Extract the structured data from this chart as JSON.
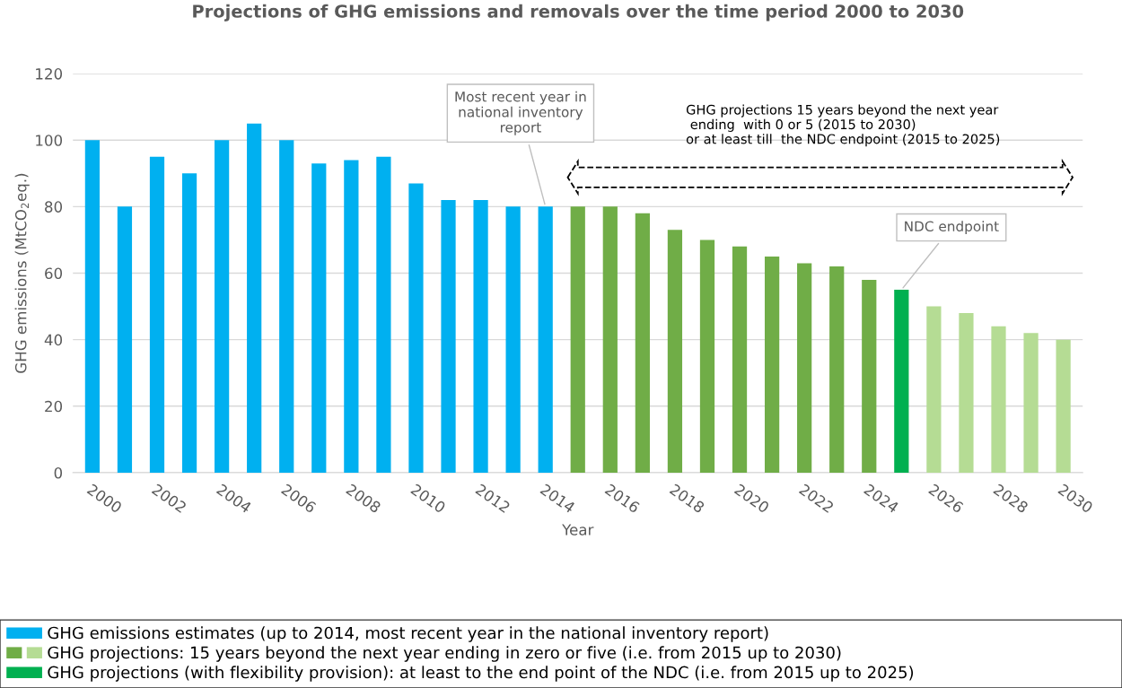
{
  "chart_data": {
    "type": "bar",
    "title": "Projections of GHG emissions and removals over the time period 2000 to 2030",
    "xlabel": "Year",
    "ylabel": "GHG emissions (MtCO$_{2}$eq.)",
    "x": [
      2000,
      2001,
      2002,
      2003,
      2004,
      2005,
      2006,
      2007,
      2008,
      2009,
      2010,
      2011,
      2012,
      2013,
      2014,
      2015,
      2016,
      2017,
      2018,
      2019,
      2020,
      2021,
      2022,
      2023,
      2024,
      2025,
      2026,
      2027,
      2028,
      2029,
      2030
    ],
    "series": [
      {
        "name": "GHG emissions estimates (up to 2014, most recent year in the national inventory report)",
        "color": "#00b0f0",
        "values": [
          100,
          80,
          95,
          90,
          100,
          105,
          100,
          93,
          94,
          95,
          87,
          82,
          82,
          80,
          80,
          null,
          null,
          null,
          null,
          null,
          null,
          null,
          null,
          null,
          null,
          null,
          null,
          null,
          null,
          null,
          null
        ]
      },
      {
        "name": "GHG projections: 15 years beyond the next year ending in zero or five (i.e. from 2015 up to 2030)",
        "color": "#70ad47",
        "colors": [
          "#70ad47",
          "#70ad47",
          "#70ad47",
          "#70ad47",
          "#70ad47",
          "#70ad47",
          "#70ad47",
          "#70ad47",
          "#70ad47",
          "#70ad47",
          "#70ad47",
          "#70ad47",
          "#70ad47",
          "#70ad47",
          "#70ad47",
          "#70ad47",
          "#70ad47",
          "#70ad47",
          "#70ad47",
          "#70ad47",
          "#70ad47",
          "#70ad47",
          "#70ad47",
          "#70ad47",
          "#70ad47",
          "#70ad47",
          "#b5dc94",
          "#b5dc94",
          "#b5dc94",
          "#b5dc94",
          "#b5dc94"
        ],
        "values": [
          null,
          null,
          null,
          null,
          null,
          null,
          null,
          null,
          null,
          null,
          null,
          null,
          null,
          null,
          null,
          80,
          80,
          78,
          73,
          70,
          68,
          65,
          63,
          62,
          58,
          null,
          50,
          48,
          44,
          42,
          40
        ]
      },
      {
        "name": "GHG projections (with flexibility provision): at least to the end point of the NDC (i.e. from 2015 up to 2025)",
        "color": "#00b050",
        "values": [
          null,
          null,
          null,
          null,
          null,
          null,
          null,
          null,
          null,
          null,
          null,
          null,
          null,
          null,
          null,
          null,
          null,
          null,
          null,
          null,
          null,
          null,
          null,
          null,
          null,
          55,
          null,
          null,
          null,
          null,
          null
        ]
      }
    ],
    "xlim": [
      1999.4,
      2030.6
    ],
    "xticks": [
      2000,
      2002,
      2004,
      2006,
      2008,
      2010,
      2012,
      2014,
      2016,
      2018,
      2020,
      2022,
      2024,
      2026,
      2028,
      2030
    ],
    "ylim": [
      0,
      120
    ],
    "yticks": [
      0,
      20,
      40,
      60,
      80,
      100,
      120
    ],
    "grid": "y",
    "legend": "bottom",
    "annotations": [
      {
        "text": "Most recent year in\nnational inventory\nreport",
        "x": 2014,
        "y": 80
      },
      {
        "text": "NDC endpoint",
        "x": 2025,
        "y": 55
      },
      "GHG projections 15 years beyond the next year\n ending  with 0 or 5 (2015 to 2030)\nor at least till  the NDC endpoint (2015 to 2025)"
    ]
  }
}
